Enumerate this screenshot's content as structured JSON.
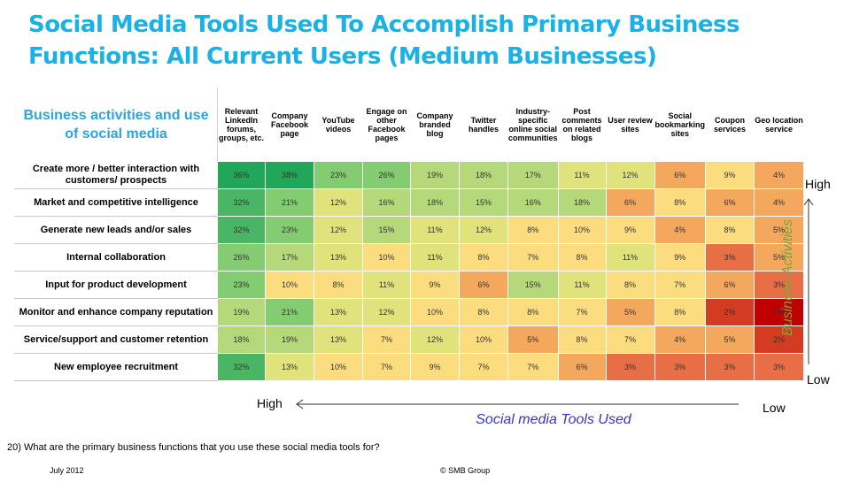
{
  "title_lines": [
    "Social Media Tools Used To Accomplish Primary Business",
    "Functions: All Current Users (Medium Businesses)"
  ],
  "corner_label": "Business activities and use of social media",
  "axis": {
    "y_high": "High",
    "y_low": "Low",
    "y_title": "Business Activities",
    "x_high": "High",
    "x_low": "Low",
    "x_title": "Social media Tools Used"
  },
  "question": "20) What are the primary business functions that you use these social media tools for?",
  "footer": {
    "date": "July 2012",
    "copyright": "© SMB Group"
  },
  "colors": {
    "scale": [
      "#c00000",
      "#d33b22",
      "#e86f45",
      "#f3a85e",
      "#fbdd80",
      "#e0e37c",
      "#b5d87b",
      "#84cc71",
      "#4ab665",
      "#21a65a"
    ]
  },
  "chart_data": {
    "type": "heatmap",
    "columns": [
      "Relevant LinkedIn forums, groups, etc.",
      "Company Facebook page",
      "YouTube videos",
      "Engage on other Facebook pages",
      "Company branded blog",
      "Twitter handles",
      "Industry-specific online social communities",
      "Post comments on related blogs",
      "User review sites",
      "Social bookmarking sites",
      "Coupon services",
      "Geo location service"
    ],
    "rows": [
      "Create more / better interaction with customers/ prospects",
      "Market and competitive intelligence",
      "Generate new leads and/or sales",
      "Internal collaboration",
      "Input for product development",
      "Monitor and enhance company reputation",
      "Service/support and customer retention",
      "New employee recruitment"
    ],
    "values": [
      [
        36,
        38,
        23,
        26,
        19,
        18,
        17,
        11,
        12,
        6,
        9,
        4
      ],
      [
        32,
        21,
        12,
        16,
        18,
        15,
        16,
        18,
        6,
        8,
        6,
        4
      ],
      [
        32,
        23,
        12,
        15,
        11,
        12,
        8,
        10,
        9,
        4,
        8,
        5
      ],
      [
        26,
        17,
        13,
        10,
        11,
        8,
        7,
        8,
        11,
        9,
        3,
        5
      ],
      [
        23,
        10,
        8,
        11,
        9,
        6,
        15,
        11,
        8,
        7,
        6,
        3
      ],
      [
        19,
        21,
        13,
        12,
        10,
        8,
        8,
        7,
        5,
        8,
        2,
        1
      ],
      [
        18,
        19,
        13,
        7,
        12,
        10,
        5,
        8,
        7,
        4,
        5,
        2
      ],
      [
        32,
        13,
        10,
        7,
        9,
        7,
        7,
        6,
        3,
        3,
        3,
        3
      ]
    ],
    "unit": "%"
  }
}
